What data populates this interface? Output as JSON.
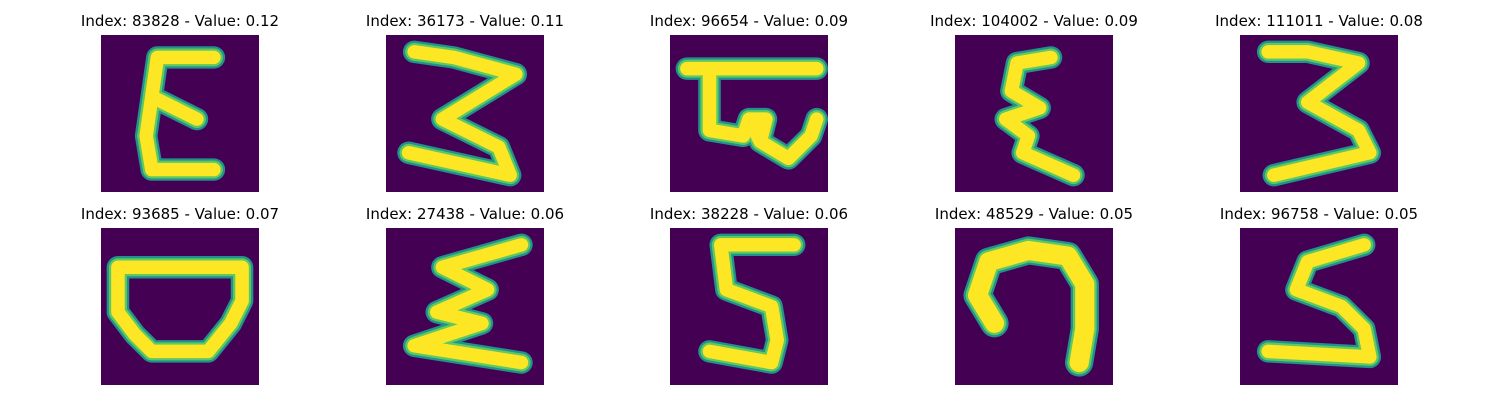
{
  "panels": [
    {
      "title": "Index: 83828 - Value: 0.12",
      "glyph": "epsilon-like reversed-3 character"
    },
    {
      "title": "Index: 36173 - Value: 0.11",
      "glyph": "3-like character with flat top"
    },
    {
      "title": "Index: 96654 - Value: 0.09",
      "glyph": "character with top bar and loops"
    },
    {
      "title": "Index: 104002 - Value: 0.09",
      "glyph": "narrow epsilon-like character"
    },
    {
      "title": "Index: 111011 - Value: 0.08",
      "glyph": "3-like character"
    },
    {
      "title": "Index: 93685 - Value: 0.07",
      "glyph": "bowl-shaped character with top bar"
    },
    {
      "title": "Index: 27438 - Value: 0.06",
      "glyph": "sigma-like zigzag character"
    },
    {
      "title": "Index: 38228 - Value: 0.06",
      "glyph": "5-like character"
    },
    {
      "title": "Index: 48529 - Value: 0.05",
      "glyph": "hook-shaped character"
    },
    {
      "title": "Index: 96758 - Value: 0.05",
      "glyph": "S-like character"
    }
  ],
  "colors": {
    "background": "#440154",
    "stroke_core": "#fde725",
    "stroke_mid": "#5ec962",
    "stroke_edge": "#21918c"
  }
}
